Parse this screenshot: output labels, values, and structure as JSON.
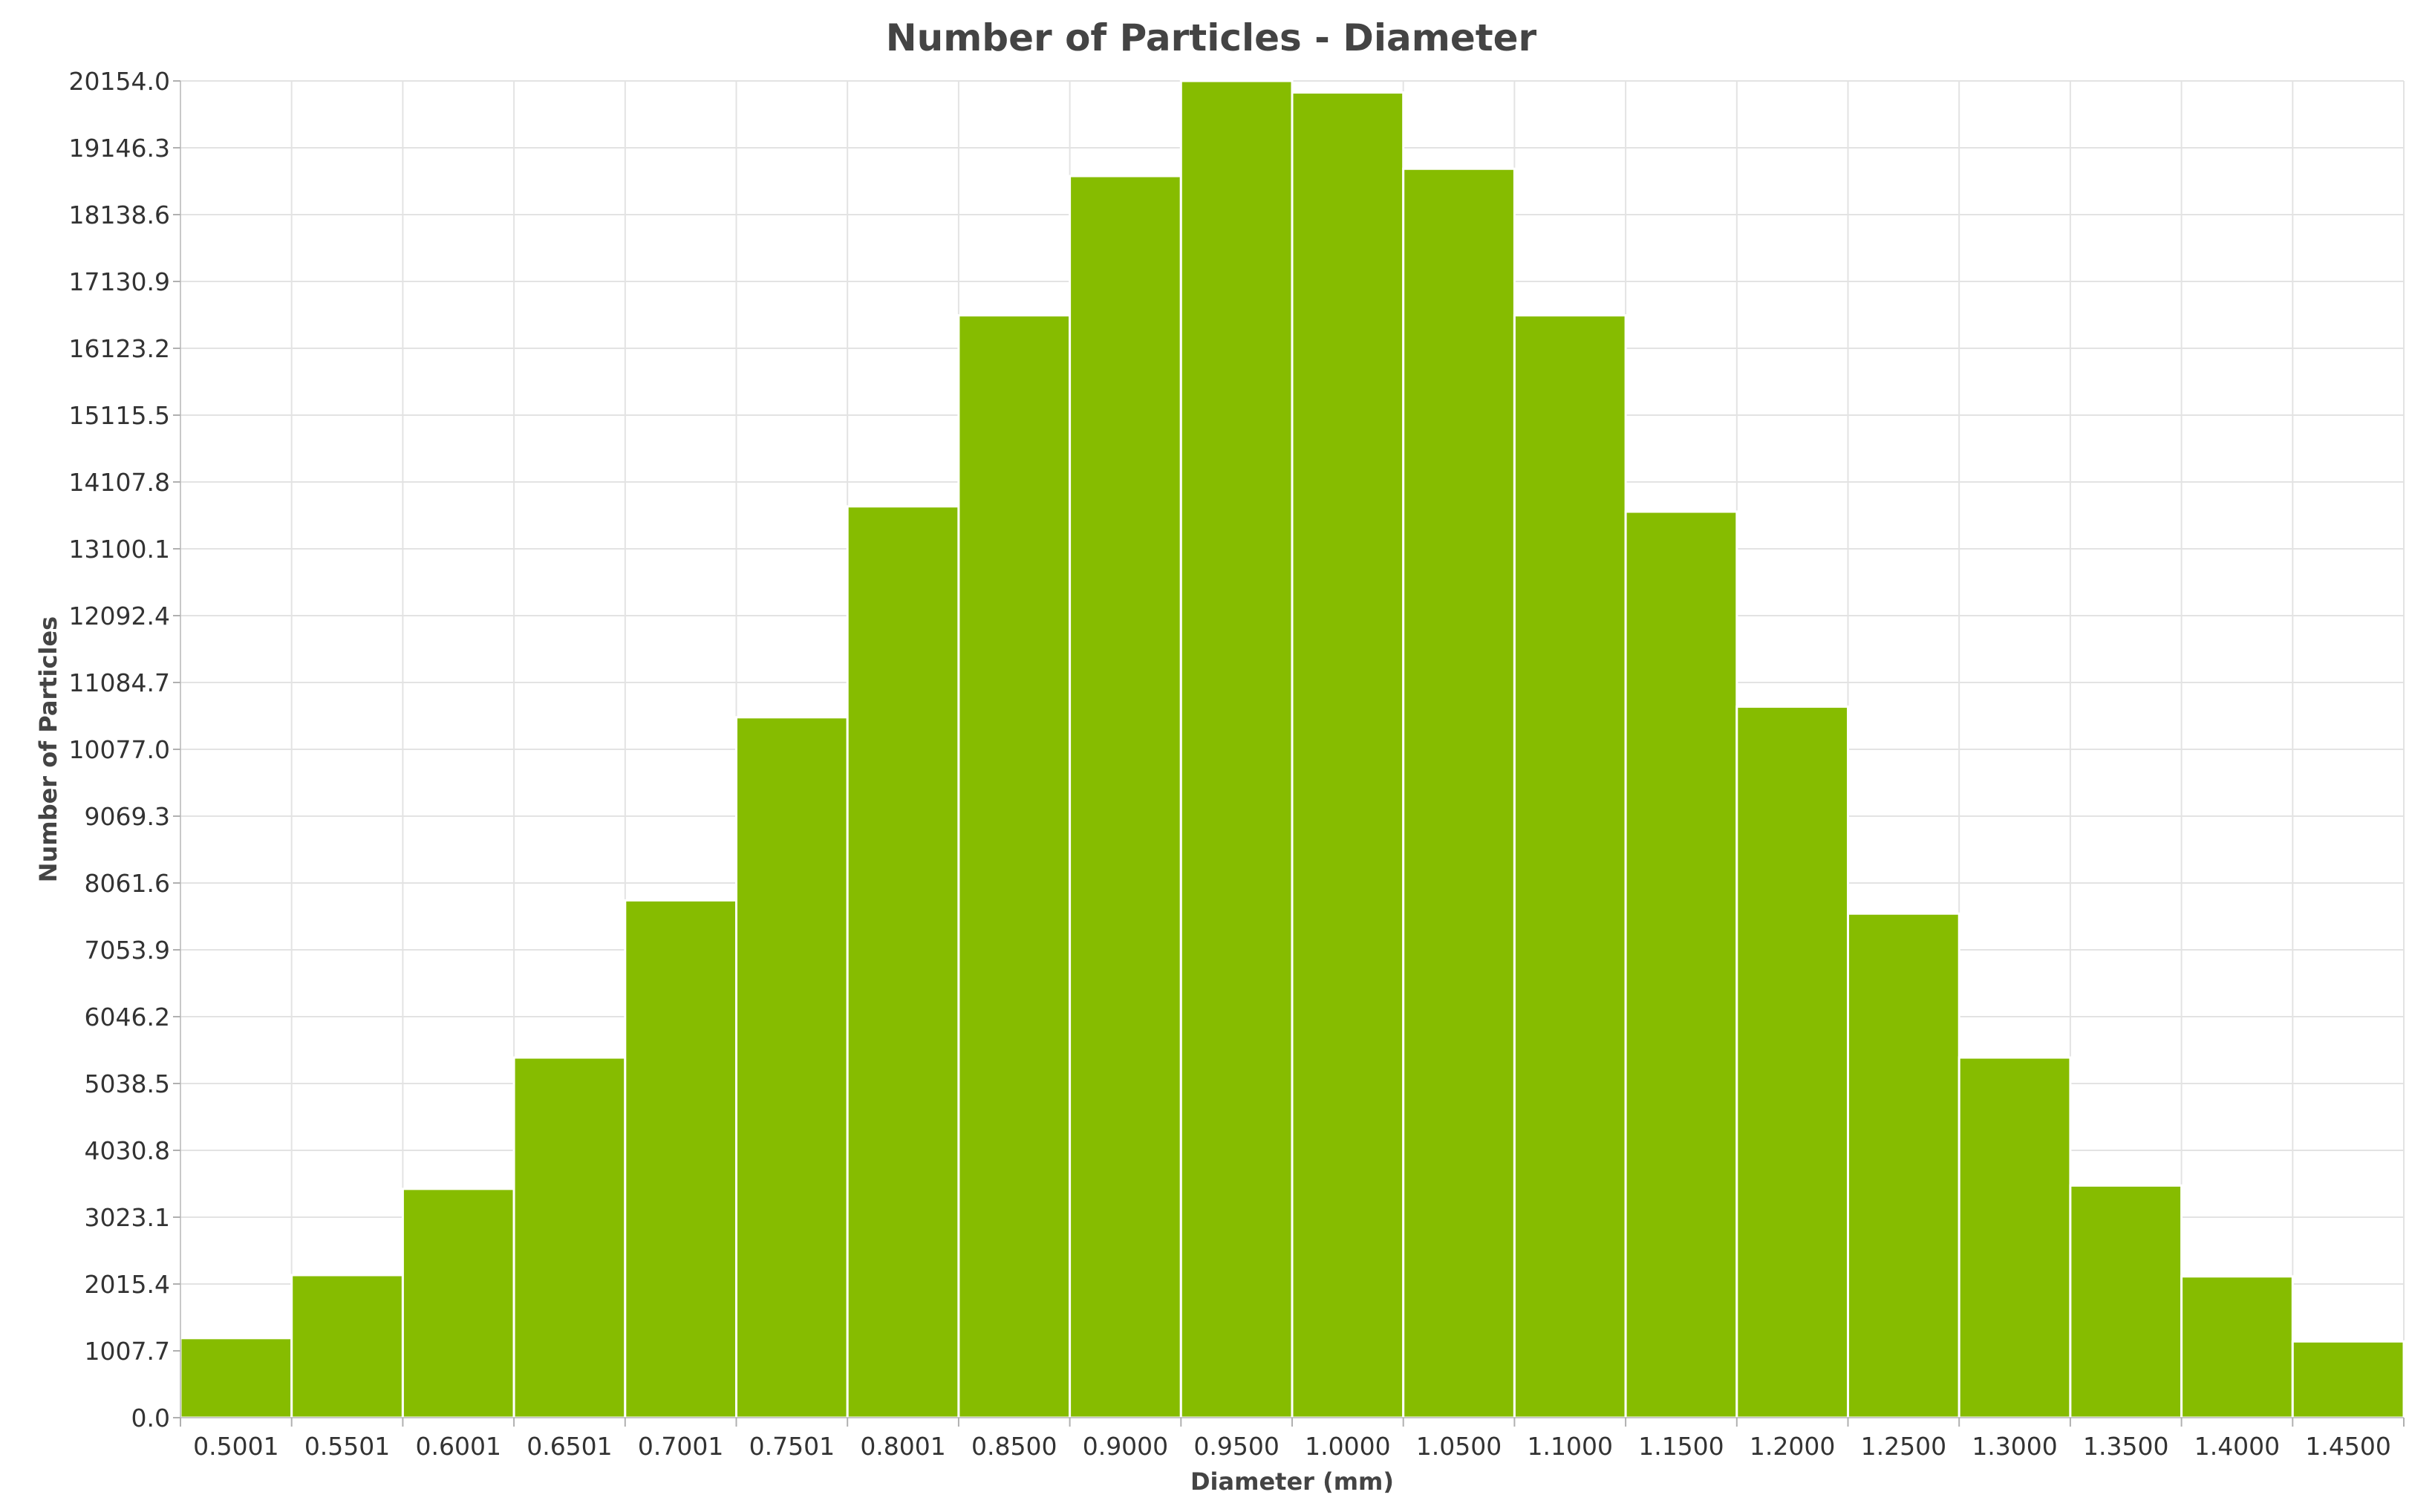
{
  "chart_data": {
    "type": "bar",
    "title": "Number of Particles - Diameter",
    "xlabel": "Diameter (mm)",
    "ylabel": "Number of Particles",
    "categories": [
      "0.5001",
      "0.5501",
      "0.6001",
      "0.6501",
      "0.7001",
      "0.7501",
      "0.8001",
      "0.8500",
      "0.9000",
      "0.9500",
      "1.0000",
      "1.0500",
      "1.1000",
      "1.1500",
      "1.2000",
      "1.2500",
      "1.3000",
      "1.3500",
      "1.4000",
      "1.4500"
    ],
    "values": [
      1200,
      2150,
      3450,
      5430,
      7800,
      10560,
      13740,
      16620,
      18720,
      20154,
      19980,
      18830,
      16620,
      13660,
      10720,
      7600,
      5430,
      3500,
      2130,
      1150
    ],
    "yticks": [
      "0.0",
      "1007.7",
      "2015.4",
      "3023.1",
      "4030.8",
      "5038.5",
      "6046.2",
      "7053.9",
      "8061.6",
      "9069.3",
      "10077.0",
      "11084.7",
      "12092.4",
      "13100.1",
      "14107.8",
      "15115.5",
      "16123.2",
      "17130.9",
      "18138.6",
      "19146.3",
      "20154.0"
    ],
    "ylim": [
      0,
      20154
    ],
    "grid": true,
    "bar_color": "#86bc00",
    "bar_edge_color": "#ffffff"
  }
}
